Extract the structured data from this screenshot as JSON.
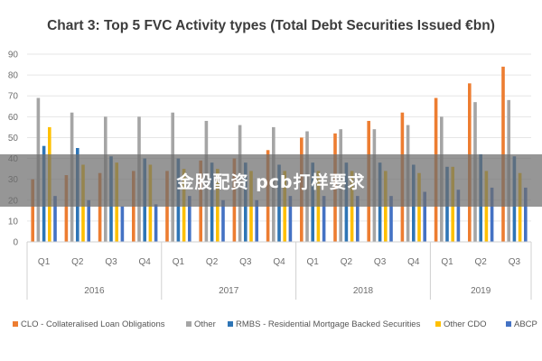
{
  "chart_data": {
    "type": "bar",
    "title": "Chart 3: Top 5 FVC Activity types (Total Debt Securities Issued €bn)",
    "xlabel": "",
    "ylabel": "",
    "ylim": [
      0,
      90
    ],
    "yticks": [
      0,
      10,
      20,
      30,
      40,
      50,
      60,
      70,
      80,
      90
    ],
    "grid": true,
    "legend_position": "bottom",
    "categories": [
      "Q1",
      "Q2",
      "Q3",
      "Q4",
      "Q1",
      "Q2",
      "Q3",
      "Q4",
      "Q1",
      "Q2",
      "Q3",
      "Q4",
      "Q1",
      "Q2",
      "Q3"
    ],
    "year_groups": [
      {
        "label": "2016",
        "count": 4
      },
      {
        "label": "2017",
        "count": 4
      },
      {
        "label": "2018",
        "count": 4
      },
      {
        "label": "2019",
        "count": 3
      }
    ],
    "series": [
      {
        "name": "CLO - Collateralised Loan Obligations",
        "color": "#ed7d31",
        "values": [
          30,
          32,
          33,
          34,
          34,
          39,
          40,
          44,
          50,
          52,
          58,
          62,
          69,
          76,
          84
        ]
      },
      {
        "name": "Other",
        "color": "#a5a5a5",
        "values": [
          69,
          62,
          60,
          60,
          62,
          58,
          56,
          55,
          53,
          54,
          54,
          56,
          60,
          67,
          68
        ]
      },
      {
        "name": "RMBS - Residential Mortgage Backed Securities",
        "color": "#2e75b6",
        "values": [
          46,
          45,
          41,
          40,
          40,
          38,
          38,
          37,
          38,
          38,
          38,
          37,
          36,
          42,
          41
        ]
      },
      {
        "name": "Other CDO",
        "color": "#ffc000",
        "values": [
          55,
          37,
          38,
          37,
          35,
          35,
          34,
          34,
          34,
          34,
          34,
          33,
          36,
          34,
          33
        ]
      },
      {
        "name": "ABCP",
        "color": "#4472c4",
        "values": [
          22,
          20,
          17,
          18,
          22,
          20,
          20,
          22,
          22,
          22,
          22,
          24,
          25,
          26,
          26
        ]
      }
    ]
  },
  "watermark": {
    "text": "金股配资 pcb打样要求"
  }
}
